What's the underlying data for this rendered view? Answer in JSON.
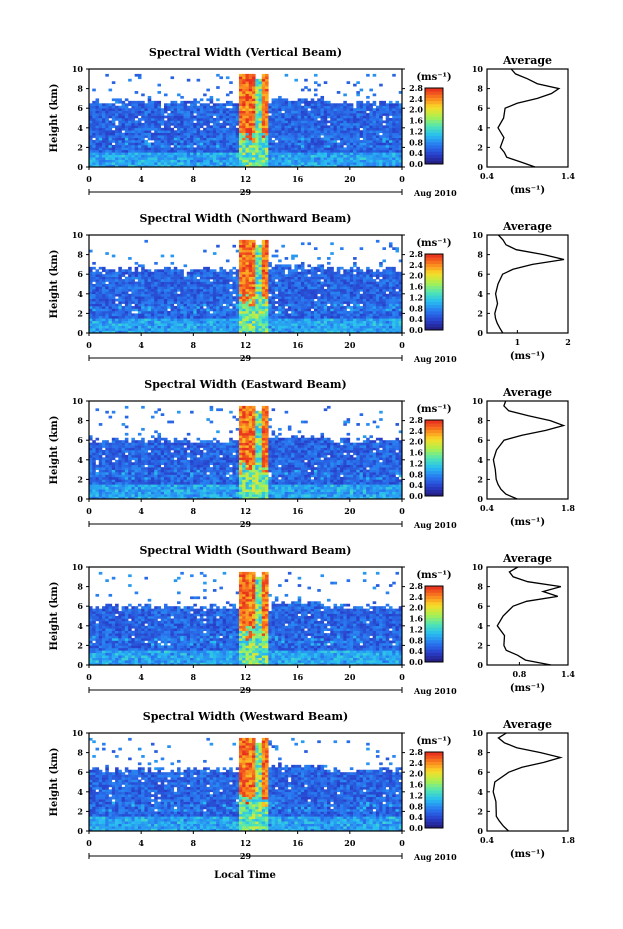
{
  "figure": {
    "x_axis_label": "Local Time",
    "date_label": "Aug 2010",
    "day_label": "29",
    "y_axis_label": "Height (km)",
    "unit_label": "(ms⁻¹)",
    "avg_title": "Average"
  },
  "chart_data": [
    {
      "type": "heatmap",
      "title": "Spectral Width (Vertical Beam)",
      "xlabel": "",
      "ylabel": "Height (km)",
      "xlim": [
        0,
        24
      ],
      "ylim": [
        0,
        10
      ],
      "xticks": [
        "0",
        "4",
        "8",
        "12",
        "16",
        "20",
        "0"
      ],
      "yticks": [
        "0",
        "2",
        "4",
        "6",
        "8",
        "10"
      ],
      "colorbar": {
        "range": [
          0.0,
          2.8
        ],
        "ticks": [
          "0.0",
          "0.4",
          "0.8",
          "1.2",
          "1.6",
          "2.0",
          "2.4",
          "2.8"
        ]
      },
      "echo_top_km": 6.6,
      "convective_hours": [
        11.5,
        13.8
      ],
      "average_profile": {
        "xlim": [
          0.4,
          1.4
        ],
        "xticks": [
          "0.4",
          "1.4"
        ],
        "xlabel": "(ms⁻¹)",
        "height_km": [
          0,
          0.5,
          1,
          1.5,
          2,
          3,
          4,
          5,
          6,
          6.5,
          7,
          7.5,
          8,
          8.5,
          9,
          9.5,
          10
        ],
        "value": [
          1.0,
          0.8,
          0.65,
          0.6,
          0.55,
          0.6,
          0.55,
          0.6,
          0.65,
          0.8,
          1.0,
          1.2,
          1.3,
          1.05,
          0.9,
          0.75,
          0.7
        ]
      }
    },
    {
      "type": "heatmap",
      "title": "Spectral Width (Northward Beam)",
      "xlabel": "",
      "ylabel": "Height (km)",
      "xlim": [
        0,
        24
      ],
      "ylim": [
        0,
        10
      ],
      "xticks": [
        "0",
        "4",
        "8",
        "12",
        "16",
        "20",
        "0"
      ],
      "yticks": [
        "0",
        "2",
        "4",
        "6",
        "8",
        "10"
      ],
      "colorbar": {
        "range": [
          0.0,
          2.8
        ],
        "ticks": [
          "0.0",
          "0.4",
          "0.8",
          "1.2",
          "1.6",
          "2.0",
          "2.4",
          "2.8"
        ]
      },
      "echo_top_km": 6.5,
      "convective_hours": [
        11.5,
        13.8
      ],
      "average_profile": {
        "xlim": [
          0.4,
          2.0
        ],
        "xticks": [
          "1",
          "2"
        ],
        "xlabel": "(ms⁻¹)",
        "height_km": [
          0,
          0.5,
          1,
          1.5,
          2,
          3,
          4,
          5,
          6,
          6.5,
          7,
          7.5,
          8,
          8.5,
          9,
          9.5,
          10
        ],
        "value": [
          0.7,
          0.65,
          0.6,
          0.55,
          0.55,
          0.6,
          0.55,
          0.6,
          0.7,
          0.9,
          1.3,
          1.9,
          1.5,
          1.0,
          0.8,
          0.7,
          0.65
        ]
      }
    },
    {
      "type": "heatmap",
      "title": "Spectral Width (Eastward Beam)",
      "xlabel": "",
      "ylabel": "Height (km)",
      "xlim": [
        0,
        24
      ],
      "ylim": [
        0,
        10
      ],
      "xticks": [
        "0",
        "4",
        "8",
        "12",
        "16",
        "20",
        "0"
      ],
      "yticks": [
        "0",
        "2",
        "4",
        "6",
        "8",
        "10"
      ],
      "colorbar": {
        "range": [
          0.0,
          2.8
        ],
        "ticks": [
          "0.0",
          "0.4",
          "0.8",
          "1.2",
          "1.6",
          "2.0",
          "2.4",
          "2.8"
        ]
      },
      "echo_top_km": 6.0,
      "convective_hours": [
        11.5,
        13.8
      ],
      "average_profile": {
        "xlim": [
          0.4,
          1.8
        ],
        "xticks": [
          "0.4",
          "1.8"
        ],
        "xlabel": "(ms⁻¹)",
        "height_km": [
          0,
          0.5,
          1,
          1.5,
          2,
          3,
          4,
          5,
          6,
          6.5,
          7,
          7.5,
          8,
          8.5,
          9,
          9.5,
          10
        ],
        "value": [
          0.9,
          0.75,
          0.65,
          0.6,
          0.55,
          0.55,
          0.5,
          0.55,
          0.7,
          1.0,
          1.4,
          1.7,
          1.5,
          1.1,
          0.8,
          0.7,
          0.75
        ]
      }
    },
    {
      "type": "heatmap",
      "title": "Spectral Width (Southward Beam)",
      "xlabel": "",
      "ylabel": "Height (km)",
      "xlim": [
        0,
        24
      ],
      "ylim": [
        0,
        10
      ],
      "xticks": [
        "0",
        "4",
        "8",
        "12",
        "16",
        "20",
        "0"
      ],
      "yticks": [
        "0",
        "2",
        "4",
        "6",
        "8",
        "10"
      ],
      "colorbar": {
        "range": [
          0.0,
          2.8
        ],
        "ticks": [
          "0.0",
          "0.4",
          "0.8",
          "1.2",
          "1.6",
          "2.0",
          "2.4",
          "2.8"
        ]
      },
      "echo_top_km": 6.0,
      "convective_hours": [
        11.5,
        13.8
      ],
      "average_profile": {
        "xlim": [
          0.4,
          1.4
        ],
        "xticks": [
          "0.8",
          "1.4"
        ],
        "xlabel": "(ms⁻¹)",
        "height_km": [
          0,
          0.5,
          1,
          1.5,
          2,
          3,
          4,
          5,
          6,
          6.5,
          7,
          7.5,
          8,
          8.5,
          9,
          9.5,
          10
        ],
        "value": [
          1.2,
          0.9,
          0.75,
          0.65,
          0.6,
          0.6,
          0.55,
          0.6,
          0.7,
          0.9,
          1.25,
          1.1,
          1.3,
          0.9,
          0.75,
          0.65,
          0.8
        ]
      }
    },
    {
      "type": "heatmap",
      "title": "Spectral Width (Westward Beam)",
      "xlabel": "Local Time",
      "ylabel": "Height (km)",
      "xlim": [
        0,
        24
      ],
      "ylim": [
        0,
        10
      ],
      "xticks": [
        "0",
        "4",
        "8",
        "12",
        "16",
        "20",
        "0"
      ],
      "yticks": [
        "0",
        "2",
        "4",
        "6",
        "8",
        "10"
      ],
      "colorbar": {
        "range": [
          0.0,
          2.8
        ],
        "ticks": [
          "0.0",
          "0.4",
          "0.8",
          "1.2",
          "1.6",
          "2.0",
          "2.4",
          "2.8"
        ]
      },
      "echo_top_km": 6.3,
      "convective_hours": [
        11.5,
        13.8
      ],
      "average_profile": {
        "xlim": [
          0.4,
          1.8
        ],
        "xticks": [
          "0.4",
          "1.8"
        ],
        "xlabel": "(ms⁻¹)",
        "height_km": [
          0,
          0.5,
          1,
          1.5,
          2,
          3,
          4,
          5,
          6,
          6.5,
          7,
          7.5,
          8,
          8.5,
          9,
          9.5,
          10
        ],
        "value": [
          0.8,
          0.7,
          0.6,
          0.55,
          0.55,
          0.55,
          0.5,
          0.55,
          0.75,
          1.0,
          1.4,
          1.7,
          1.3,
          0.9,
          0.7,
          0.6,
          0.75
        ]
      }
    }
  ]
}
